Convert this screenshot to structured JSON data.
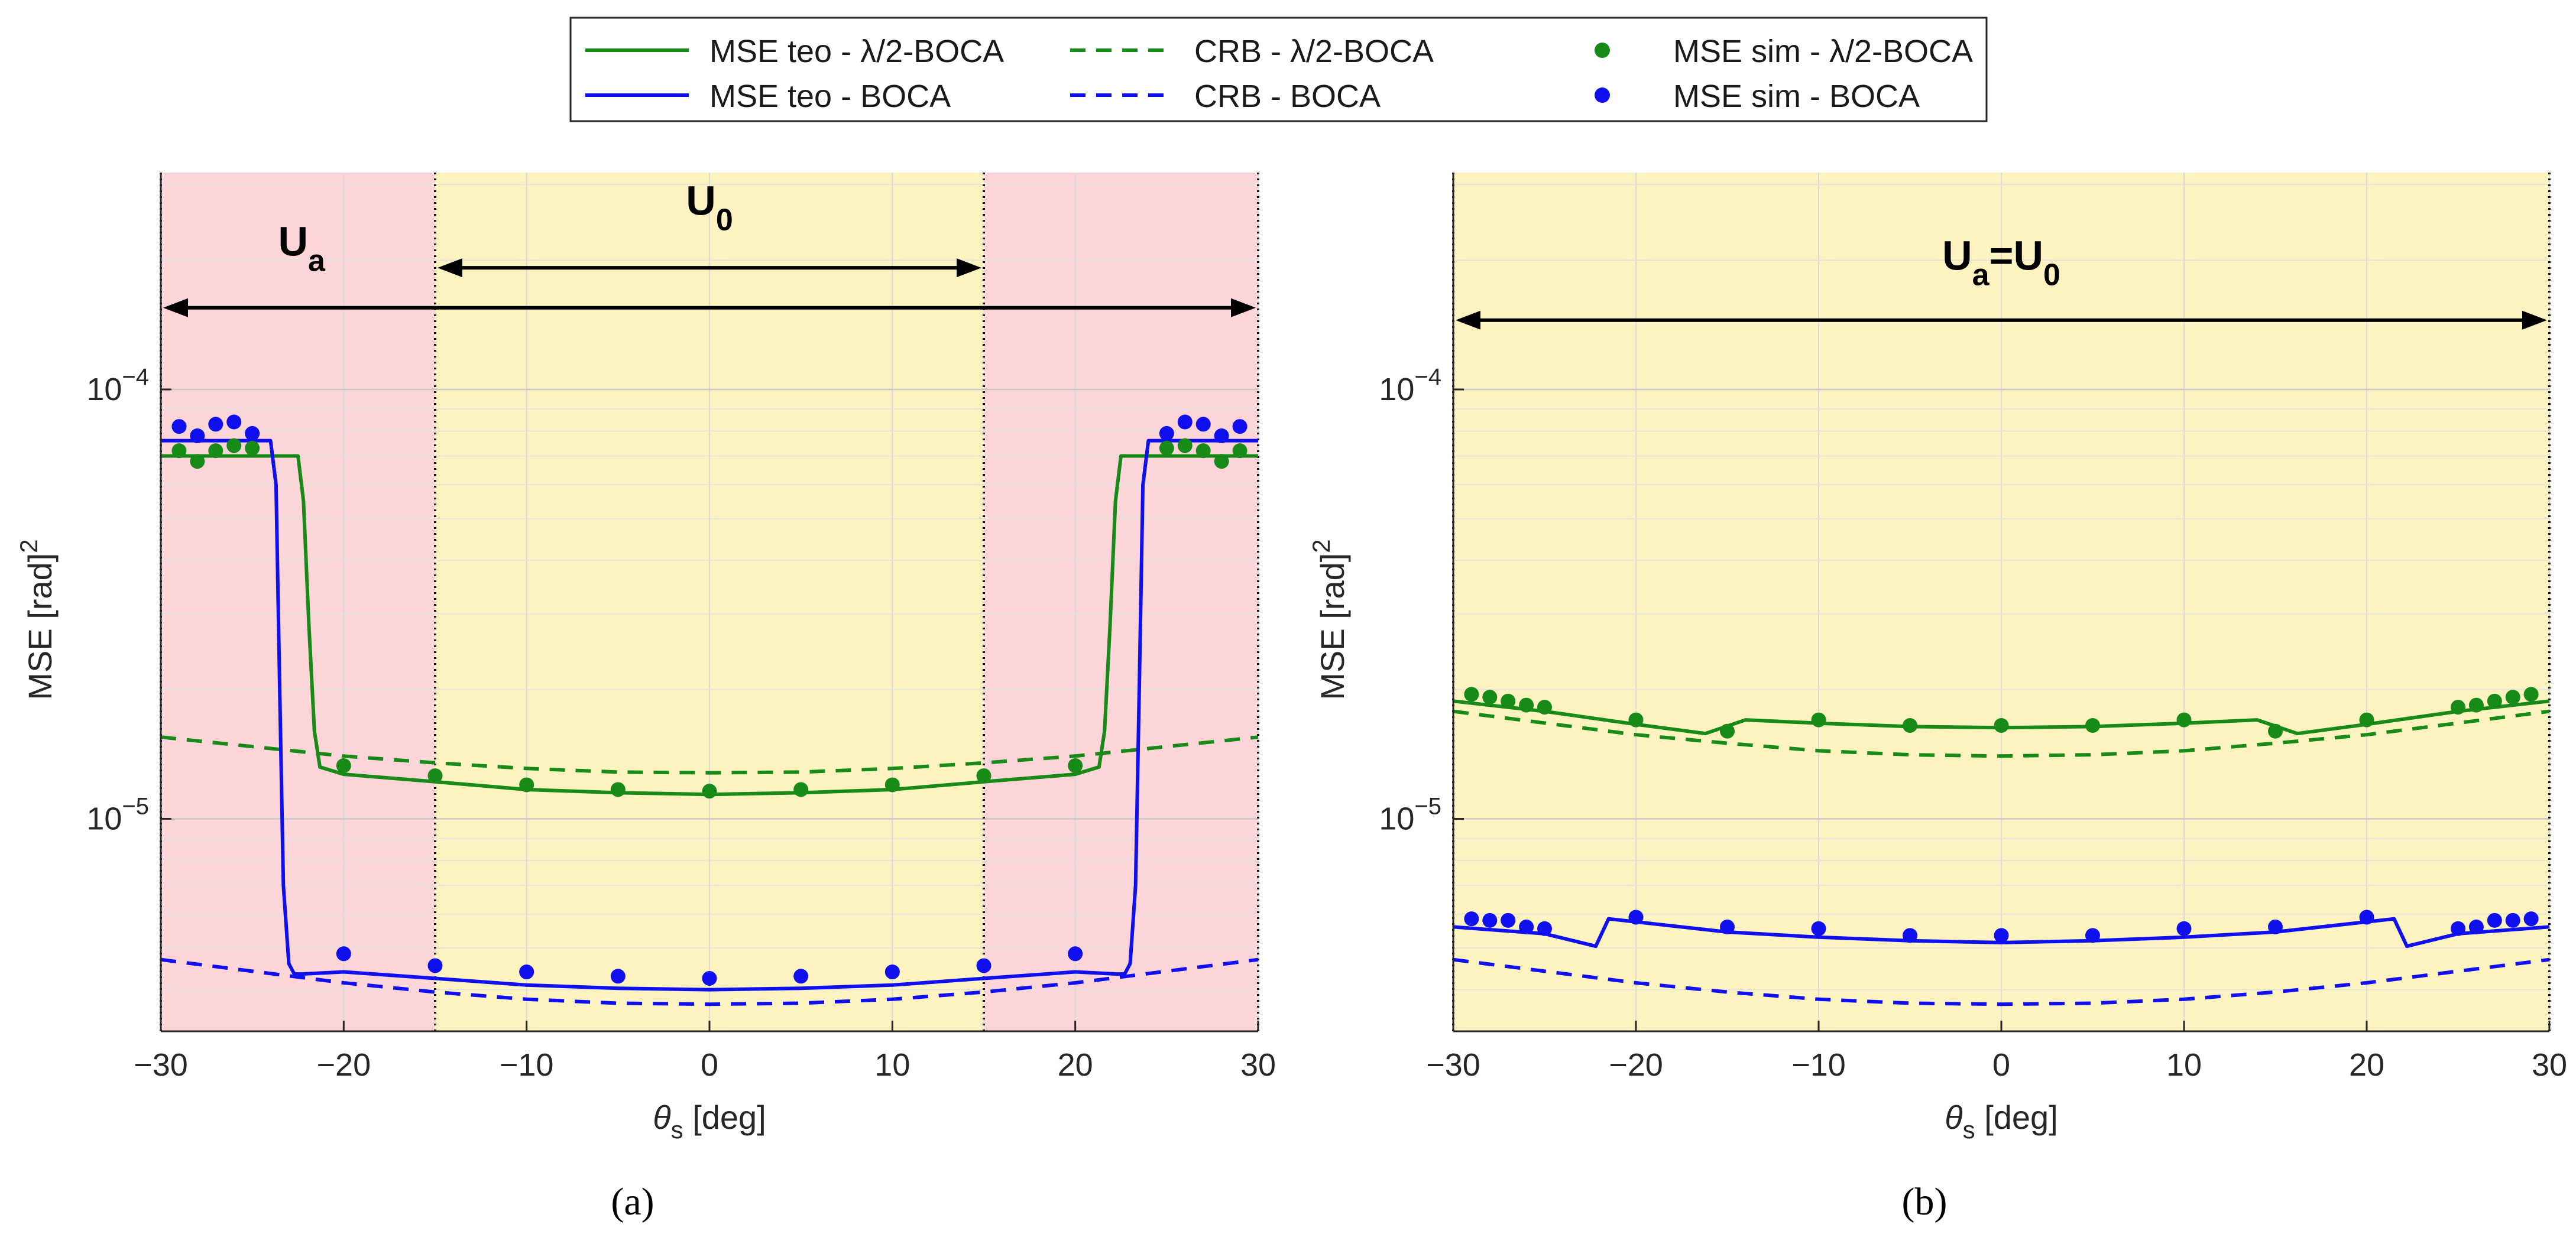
{
  "colors": {
    "green": "#178a17",
    "blue": "#1010ee",
    "red_region": "#fbd5d8",
    "yellow_region": "#fcf3c0",
    "grid": "#d9d9d9",
    "axis": "#262626"
  },
  "legend": {
    "entries": [
      {
        "label": "MSE teo - λ/2-BOCA",
        "color": "green",
        "style": "solid"
      },
      {
        "label": "MSE teo - BOCA",
        "color": "blue",
        "style": "solid"
      },
      {
        "label": "CRB - λ/2-BOCA",
        "color": "green",
        "style": "dashed"
      },
      {
        "label": "CRB - BOCA",
        "color": "blue",
        "style": "dashed"
      },
      {
        "label": "MSE sim - λ/2-BOCA",
        "color": "green",
        "style": "marker"
      },
      {
        "label": "MSE sim - BOCA",
        "color": "blue",
        "style": "marker"
      }
    ]
  },
  "chart_data": [
    {
      "type": "line",
      "panel_label": "(a)",
      "xlabel": "θ",
      "xlabel_sub": "s",
      "xlabel_suffix": " [deg]",
      "ylabel": "MSE [rad]",
      "ylabel_sup": "2",
      "xlim": [
        -30,
        30
      ],
      "ylim": [
        3.2e-06,
        0.00032
      ],
      "yscale": "log",
      "grid": true,
      "xticks": [
        -30,
        -20,
        -10,
        0,
        10,
        20,
        30
      ],
      "xtick_labels": [
        "−30",
        "−20",
        "−10",
        "0",
        "10",
        "20",
        "30"
      ],
      "yticks": [
        1e-05,
        0.0001
      ],
      "ytick_labels": [
        {
          "base": "10",
          "exp": "−5"
        },
        {
          "base": "10",
          "exp": "−4"
        }
      ],
      "regions": [
        {
          "x0": -30,
          "x1": -15,
          "color": "red_region"
        },
        {
          "x0": -15,
          "x1": 15,
          "color": "yellow_region"
        },
        {
          "x0": 15,
          "x1": 30,
          "color": "red_region"
        }
      ],
      "vlines": [
        -30,
        -15,
        15,
        30
      ],
      "annotations": [
        {
          "text": "U",
          "sub": "a",
          "x0": -30,
          "x1": 30,
          "arrow_y": 0.000155,
          "label_x": -22.3,
          "label_y": 0.000205
        },
        {
          "text": "U",
          "sub": "0",
          "x0": -15,
          "x1": 15,
          "arrow_y": 0.000192,
          "label_x": 0,
          "label_y": 0.000255
        }
      ],
      "series": [
        {
          "name": "CRB - λ/2-BOCA",
          "color": "green",
          "style": "dashed",
          "x": [
            -30,
            -20,
            -15,
            -10,
            -5,
            0,
            5,
            10,
            15,
            20,
            30
          ],
          "y": [
            1.55e-05,
            1.4e-05,
            1.35e-05,
            1.31e-05,
            1.285e-05,
            1.28e-05,
            1.285e-05,
            1.31e-05,
            1.35e-05,
            1.4e-05,
            1.55e-05
          ]
        },
        {
          "name": "CRB - BOCA",
          "color": "blue",
          "style": "dashed",
          "x": [
            -30,
            -20,
            -15,
            -10,
            -5,
            0,
            5,
            10,
            15,
            20,
            30
          ],
          "y": [
            4.7e-06,
            4.15e-06,
            3.95e-06,
            3.8e-06,
            3.72e-06,
            3.7e-06,
            3.72e-06,
            3.8e-06,
            3.95e-06,
            4.15e-06,
            4.7e-06
          ]
        },
        {
          "name": "MSE teo - λ/2-BOCA",
          "color": "green",
          "style": "solid",
          "x": [
            -30,
            -25,
            -22.5,
            -22.2,
            -21.9,
            -21.6,
            -21.3,
            -20,
            -15,
            -10,
            -5,
            0,
            5,
            10,
            15,
            20,
            21.3,
            21.6,
            21.9,
            22.2,
            22.5,
            25,
            30
          ],
          "y": [
            7e-05,
            7e-05,
            7e-05,
            5.5e-05,
            2.8e-05,
            1.6e-05,
            1.32e-05,
            1.27e-05,
            1.22e-05,
            1.17e-05,
            1.15e-05,
            1.14e-05,
            1.15e-05,
            1.17e-05,
            1.22e-05,
            1.27e-05,
            1.32e-05,
            1.6e-05,
            2.8e-05,
            5.5e-05,
            7e-05,
            7e-05,
            7e-05
          ]
        },
        {
          "name": "MSE teo - BOCA",
          "color": "blue",
          "style": "solid",
          "x": [
            -30,
            -24,
            -23.7,
            -23.5,
            -23.3,
            -23.0,
            -22.7,
            -22.3,
            -20,
            -15,
            -10,
            -5,
            0,
            5,
            10,
            15,
            20,
            22.3,
            22.7,
            23.0,
            23.3,
            23.5,
            23.7,
            24,
            30
          ],
          "y": [
            7.6e-05,
            7.6e-05,
            6e-05,
            2e-05,
            7e-06,
            4.6e-06,
            4.35e-06,
            4.35e-06,
            4.4e-06,
            4.25e-06,
            4.1e-06,
            4.03e-06,
            4e-06,
            4.03e-06,
            4.1e-06,
            4.25e-06,
            4.4e-06,
            4.35e-06,
            4.35e-06,
            4.6e-06,
            7e-06,
            2e-05,
            6e-05,
            7.6e-05,
            7.6e-05
          ]
        },
        {
          "name": "MSE sim - λ/2-BOCA",
          "color": "green",
          "style": "marker",
          "x": [
            -29,
            -28,
            -27,
            -26,
            -25,
            -20,
            -15,
            -10,
            -5,
            0,
            5,
            10,
            15,
            20,
            25,
            26,
            27,
            28,
            29
          ],
          "y": [
            7.2e-05,
            6.8e-05,
            7.2e-05,
            7.4e-05,
            7.3e-05,
            1.33e-05,
            1.26e-05,
            1.2e-05,
            1.17e-05,
            1.16e-05,
            1.17e-05,
            1.2e-05,
            1.26e-05,
            1.33e-05,
            7.3e-05,
            7.4e-05,
            7.2e-05,
            6.8e-05,
            7.2e-05
          ]
        },
        {
          "name": "MSE sim - BOCA",
          "color": "blue",
          "style": "marker",
          "x": [
            -29,
            -28,
            -27,
            -26,
            -25,
            -20,
            -15,
            -10,
            -5,
            0,
            5,
            10,
            15,
            20,
            25,
            26,
            27,
            28,
            29
          ],
          "y": [
            8.2e-05,
            7.8e-05,
            8.3e-05,
            8.4e-05,
            7.9e-05,
            4.85e-06,
            4.55e-06,
            4.4e-06,
            4.3e-06,
            4.25e-06,
            4.3e-06,
            4.4e-06,
            4.55e-06,
            4.85e-06,
            7.9e-05,
            8.4e-05,
            8.3e-05,
            7.8e-05,
            8.2e-05
          ]
        }
      ]
    },
    {
      "type": "line",
      "panel_label": "(b)",
      "xlabel": "θ",
      "xlabel_sub": "s",
      "xlabel_suffix": " [deg]",
      "ylabel": "MSE [rad]",
      "ylabel_sup": "2",
      "xlim": [
        -30,
        30
      ],
      "ylim": [
        3.2e-06,
        0.00032
      ],
      "yscale": "log",
      "grid": true,
      "xticks": [
        -30,
        -20,
        -10,
        0,
        10,
        20,
        30
      ],
      "xtick_labels": [
        "−30",
        "−20",
        "−10",
        "0",
        "10",
        "20",
        "30"
      ],
      "yticks": [
        1e-05,
        0.0001
      ],
      "ytick_labels": [
        {
          "base": "10",
          "exp": "−5"
        },
        {
          "base": "10",
          "exp": "−4"
        }
      ],
      "regions": [
        {
          "x0": -30,
          "x1": 30,
          "color": "yellow_region"
        }
      ],
      "vlines": [
        -30,
        30
      ],
      "annotations": [
        {
          "text": "U",
          "sub": "a",
          "text2": "=U",
          "sub2": "0",
          "x0": -30,
          "x1": 30,
          "arrow_y": 0.000145,
          "label_x": 0,
          "label_y": 0.00019
        }
      ],
      "series": [
        {
          "name": "CRB - λ/2-BOCA",
          "color": "green",
          "style": "dashed",
          "x": [
            -30,
            -20,
            -15,
            -10,
            -5,
            0,
            5,
            10,
            15,
            20,
            30
          ],
          "y": [
            1.78e-05,
            1.57e-05,
            1.5e-05,
            1.44e-05,
            1.41e-05,
            1.4e-05,
            1.41e-05,
            1.44e-05,
            1.5e-05,
            1.57e-05,
            1.78e-05
          ]
        },
        {
          "name": "CRB - BOCA",
          "color": "blue",
          "style": "dashed",
          "x": [
            -30,
            -20,
            -15,
            -10,
            -5,
            0,
            5,
            10,
            15,
            20,
            30
          ],
          "y": [
            4.7e-06,
            4.15e-06,
            3.95e-06,
            3.8e-06,
            3.72e-06,
            3.7e-06,
            3.72e-06,
            3.8e-06,
            3.95e-06,
            4.15e-06,
            4.7e-06
          ]
        },
        {
          "name": "MSE teo - λ/2-BOCA",
          "color": "green",
          "style": "solid",
          "x": [
            -30,
            -25,
            -20,
            -16.2,
            -14,
            -10,
            -5,
            0,
            5,
            10,
            14,
            16.2,
            20,
            25,
            30
          ],
          "y": [
            1.88e-05,
            1.78e-05,
            1.66e-05,
            1.58e-05,
            1.7e-05,
            1.67e-05,
            1.64e-05,
            1.63e-05,
            1.64e-05,
            1.67e-05,
            1.7e-05,
            1.58e-05,
            1.66e-05,
            1.78e-05,
            1.88e-05
          ]
        },
        {
          "name": "MSE teo - BOCA",
          "color": "blue",
          "style": "solid",
          "x": [
            -30,
            -25,
            -22.2,
            -21.5,
            -15,
            -10,
            -5,
            0,
            5,
            10,
            15,
            21.5,
            22.2,
            25,
            30
          ],
          "y": [
            5.6e-06,
            5.4e-06,
            5.05e-06,
            5.85e-06,
            5.45e-06,
            5.3e-06,
            5.2e-06,
            5.15e-06,
            5.2e-06,
            5.3e-06,
            5.45e-06,
            5.85e-06,
            5.05e-06,
            5.4e-06,
            5.6e-06
          ]
        },
        {
          "name": "MSE sim - λ/2-BOCA",
          "color": "green",
          "style": "marker",
          "x": [
            -29,
            -28,
            -27,
            -26,
            -25,
            -20,
            -15,
            -10,
            -5,
            0,
            5,
            10,
            15,
            20,
            25,
            26,
            27,
            28,
            29
          ],
          "y": [
            1.95e-05,
            1.92e-05,
            1.88e-05,
            1.84e-05,
            1.82e-05,
            1.7e-05,
            1.6e-05,
            1.7e-05,
            1.65e-05,
            1.65e-05,
            1.65e-05,
            1.7e-05,
            1.6e-05,
            1.7e-05,
            1.82e-05,
            1.84e-05,
            1.88e-05,
            1.92e-05,
            1.95e-05
          ]
        },
        {
          "name": "MSE sim - BOCA",
          "color": "blue",
          "style": "marker",
          "x": [
            -29,
            -28,
            -27,
            -26,
            -25,
            -20,
            -15,
            -10,
            -5,
            0,
            5,
            10,
            15,
            20,
            25,
            26,
            27,
            28,
            29
          ],
          "y": [
            5.85e-06,
            5.8e-06,
            5.8e-06,
            5.6e-06,
            5.55e-06,
            5.9e-06,
            5.6e-06,
            5.55e-06,
            5.35e-06,
            5.35e-06,
            5.35e-06,
            5.55e-06,
            5.6e-06,
            5.9e-06,
            5.55e-06,
            5.6e-06,
            5.8e-06,
            5.8e-06,
            5.85e-06
          ]
        }
      ]
    }
  ]
}
